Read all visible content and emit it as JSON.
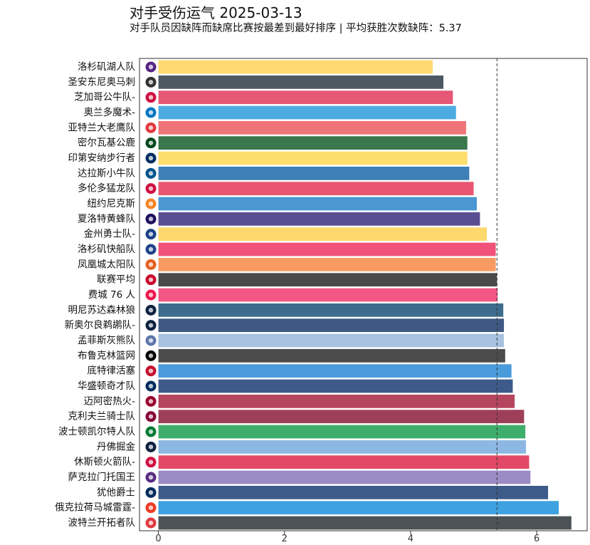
{
  "title": "对手受伤运气 2025-03-13",
  "subtitle": "对手队员因缺阵而缺席比赛按最差到最好排序 | 平均获胜次数缺阵：5.37",
  "colors": {
    "frame": "#333333",
    "refline": "#333333",
    "background": "#ffffff"
  },
  "chart_data": {
    "type": "bar",
    "orientation": "horizontal",
    "title": "对手受伤运气 2025-03-13",
    "subtitle": "对手队员因缺阵而缺席比赛按最差到最好排序 | 平均获胜次数缺阵：5.37",
    "xlabel": "",
    "ylabel": "",
    "xlim": [
      -0.3,
      6.8
    ],
    "xticks": [
      0,
      2,
      4,
      6
    ],
    "grid": false,
    "legend": "none",
    "reference_line": {
      "value": 5.37,
      "style": "dashed"
    },
    "categories": [
      "洛杉矶湖人队",
      "圣安东尼奥马刺",
      "芝加哥公牛队-",
      "奥兰多魔术-",
      "亚特兰大老鹰队",
      "密尔瓦基公鹿",
      "印第安纳步行者",
      "达拉斯小牛队",
      "多伦多猛龙队",
      "纽约尼克斯",
      "夏洛特黄蜂队",
      "金州勇士队-",
      "洛杉矶快船队",
      "凤凰城太阳队",
      "联赛平均",
      "费城 76 人",
      "明尼苏达森林狼",
      "新奥尔良鹈鹕队-",
      "孟菲斯灰熊队",
      "布鲁克林篮网",
      "底特律活塞",
      "华盛顿奇才队",
      "迈阿密热火-",
      "克利夫兰骑士队",
      "波士顿凯尔特人队",
      "丹佛掘金",
      "休斯顿火箭队-",
      "萨克拉门托国王",
      "犹他爵士",
      "俄克拉荷马城雷霆-",
      "波特兰开拓者队"
    ],
    "values": [
      4.35,
      4.52,
      4.67,
      4.72,
      4.88,
      4.9,
      4.9,
      4.93,
      5.0,
      5.05,
      5.1,
      5.21,
      5.35,
      5.35,
      5.37,
      5.38,
      5.47,
      5.48,
      5.48,
      5.5,
      5.6,
      5.62,
      5.65,
      5.8,
      5.82,
      5.83,
      5.88,
      5.9,
      6.18,
      6.35,
      6.55
    ],
    "bar_colors": [
      "#fdd96f",
      "#4c5962",
      "#e55775",
      "#4cabe0",
      "#ef7478",
      "#3a774d",
      "#fddd6c",
      "#3e7fb8",
      "#e85671",
      "#4a97d3",
      "#5a4e93",
      "#fdd86d",
      "#f0527a",
      "#f89a62",
      "#4a4a4a",
      "#f25784",
      "#3d6c8e",
      "#3e5a84",
      "#a7c1df",
      "#4c4c4c",
      "#4a9bdb",
      "#3d5a8a",
      "#b5445f",
      "#9e3f5a",
      "#3eae6c",
      "#8db8e3",
      "#e14966",
      "#9b8bc4",
      "#3c5b89",
      "#3ea1e0",
      "#4c5356"
    ],
    "icons": [
      "lakers-logo-icon",
      "spurs-logo-icon",
      "bulls-logo-icon",
      "magic-logo-icon",
      "hawks-logo-icon",
      "bucks-logo-icon",
      "pacers-logo-icon",
      "mavericks-logo-icon",
      "raptors-logo-icon",
      "knicks-logo-icon",
      "hornets-logo-icon",
      "warriors-logo-icon",
      "clippers-logo-icon",
      "suns-logo-icon",
      "nba-logo-icon",
      "76ers-logo-icon",
      "timberwolves-logo-icon",
      "pelicans-logo-icon",
      "grizzlies-logo-icon",
      "nets-logo-icon",
      "pistons-logo-icon",
      "wizards-logo-icon",
      "heat-logo-icon",
      "cavaliers-logo-icon",
      "celtics-logo-icon",
      "nuggets-logo-icon",
      "rockets-logo-icon",
      "kings-logo-icon",
      "jazz-logo-icon",
      "thunder-logo-icon",
      "blazers-logo-icon"
    ],
    "icon_colors": [
      "#552583",
      "#333333",
      "#ce1141",
      "#0077c0",
      "#e03a3e",
      "#00471b",
      "#002d62",
      "#00538c",
      "#ce1141",
      "#f58426",
      "#1d1160",
      "#1d428a",
      "#1d428a",
      "#e56020",
      "#c9082a",
      "#ed174c",
      "#0c2340",
      "#0c2340",
      "#5d76a9",
      "#000000",
      "#c8102e",
      "#002b5c",
      "#98002e",
      "#860038",
      "#007a33",
      "#0e2240",
      "#ce1141",
      "#5a2d81",
      "#002b5c",
      "#ef3b24",
      "#e03a3e"
    ]
  }
}
